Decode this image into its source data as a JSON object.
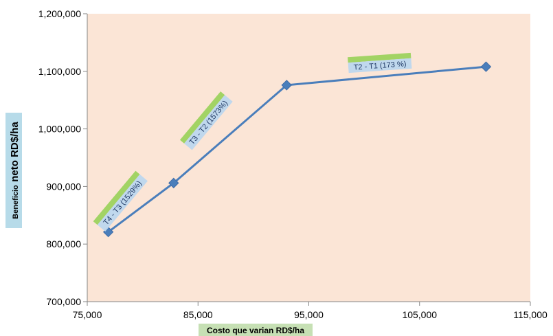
{
  "chart_data": {
    "type": "line",
    "xlabel": "Costo que varian RD$/ha",
    "ylabel_small": "Beneficio",
    "ylabel_large": "neto RD$/ha",
    "xlim": [
      75000,
      115000
    ],
    "ylim": [
      700000,
      1200000
    ],
    "x_ticks": [
      "75,000",
      "85,000",
      "95,000",
      "105,000",
      "115,000"
    ],
    "x_tick_values": [
      75000,
      85000,
      95000,
      105000,
      115000
    ],
    "y_ticks": [
      "700,000",
      "800,000",
      "900,000",
      "1,000,000",
      "1,100,000",
      "1,200,000"
    ],
    "y_tick_values": [
      700000,
      800000,
      900000,
      1000000,
      1100000,
      1200000
    ],
    "grid": false,
    "plot_background": "#fbe5d6",
    "line_color": "#4a7ebb",
    "series": [
      {
        "x": [
          76900,
          82800,
          93000,
          111000
        ],
        "y": [
          821000,
          906000,
          1076000,
          1108000
        ]
      }
    ],
    "annotations": [
      {
        "text": "T4 - T3  (1529%)"
      },
      {
        "text": "T3 - T2 (1573%)"
      },
      {
        "text": "T2 - T1 (173 %)"
      }
    ]
  }
}
